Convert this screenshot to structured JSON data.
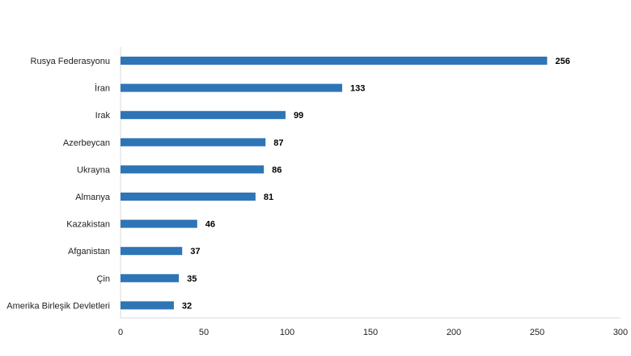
{
  "chart_data": {
    "type": "bar",
    "orientation": "horizontal",
    "categories": [
      "Rusya Federasyonu",
      "İran",
      "Irak",
      "Azerbeycan",
      "Ukrayna",
      "Almanya",
      "Kazakistan",
      "Afganistan",
      "Çin",
      "Amerika Birleşik Devletleri"
    ],
    "values": [
      256,
      133,
      99,
      87,
      86,
      81,
      46,
      37,
      35,
      32
    ],
    "data_labels": [
      "256",
      "133",
      "99",
      "87",
      "86",
      "81",
      "46",
      "37",
      "35",
      "32"
    ],
    "xlim": [
      0,
      300
    ],
    "xticks": [
      0,
      50,
      100,
      150,
      200,
      250,
      300
    ],
    "xtick_labels": [
      "0",
      "50",
      "100",
      "150",
      "200",
      "250",
      "300"
    ],
    "title": "",
    "xlabel": "",
    "ylabel": "",
    "grid": false,
    "legend": "none",
    "bar_color": "#2e75b6"
  }
}
